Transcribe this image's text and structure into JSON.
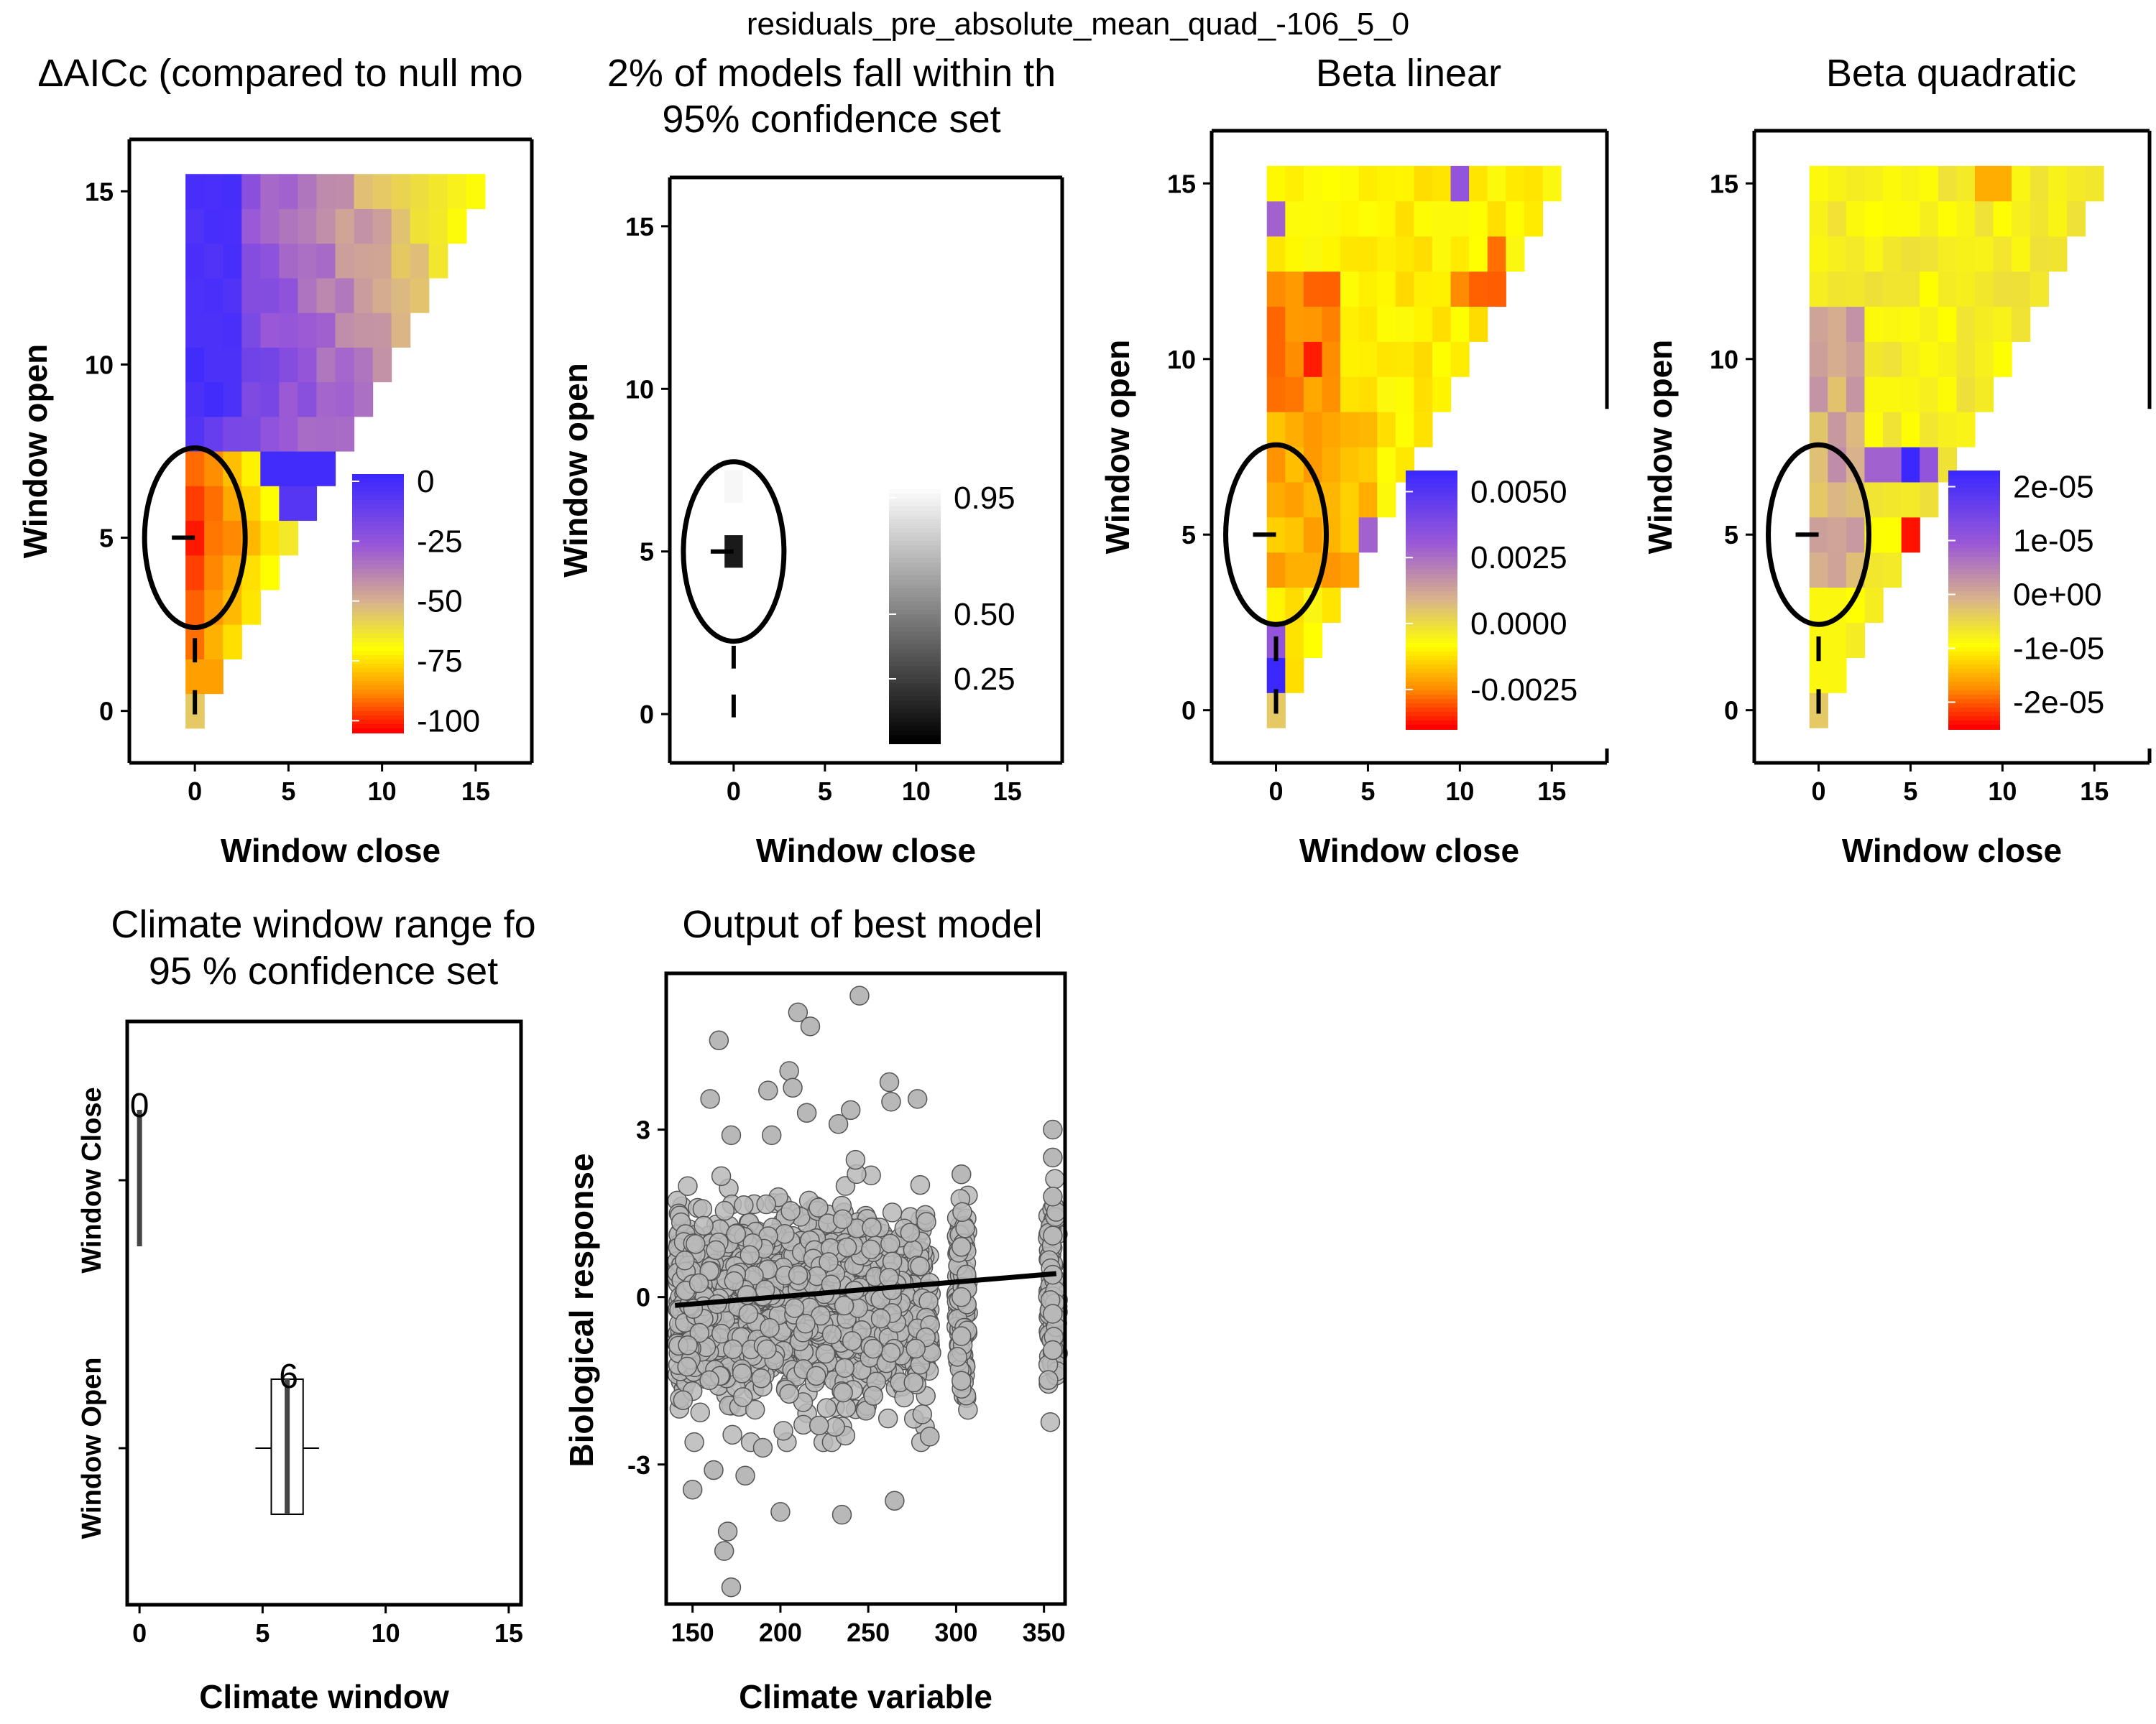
{
  "page_title": "residuals_pre_absolute_mean_quad_-106_5_0",
  "colors": {
    "blue": "#3b28ff",
    "purple": "#9b59d6",
    "tan": "#d9b48a",
    "yellow": "#ffff00",
    "orange": "#ff8c00",
    "red": "#ff0000",
    "point_fill": "#b8b8b8",
    "point_edge": "#555555",
    "ellipse": "#000000"
  },
  "chart_data": [
    {
      "type": "heatmap",
      "title": "ΔAICc (compared to null mo",
      "xlabel": "Window close",
      "ylabel": "Window open",
      "xlim": [
        -3.5,
        18
      ],
      "ylim": [
        -1.5,
        16.5
      ],
      "xticks": [
        "0",
        "5",
        "10",
        "15"
      ],
      "yticks": [
        "0",
        "5",
        "10",
        "15"
      ],
      "legend": {
        "position": "right",
        "labels": [
          "0",
          "-25",
          "-50",
          "-75",
          "-100"
        ],
        "range": [
          -105,
          3
        ],
        "scale": "blue-purple-tan-yellow-orange-red"
      },
      "best_window": {
        "open": 5,
        "close": 0
      },
      "ellipse_center": [
        0,
        5
      ],
      "value_range": [
        -105,
        3
      ]
    },
    {
      "type": "heatmap",
      "title": "2% of models fall within th",
      "subtitle": "95% confidence set",
      "xlabel": "Window close",
      "ylabel": "Window open",
      "xlim": [
        -3.5,
        18
      ],
      "ylim": [
        -1.5,
        16.5
      ],
      "xticks": [
        "0",
        "5",
        "10",
        "15"
      ],
      "yticks": [
        "0",
        "5",
        "10",
        "15"
      ],
      "legend": {
        "position": "right",
        "labels": [
          "0.95",
          "0.50",
          "0.25"
        ],
        "range": [
          0,
          1
        ],
        "scale": "black-white"
      },
      "cells": [
        {
          "open": 5,
          "close": 0,
          "value": 0.1
        },
        {
          "open": 7,
          "close": 0,
          "value": 0.97
        }
      ],
      "best_window": {
        "open": 5,
        "close": 0
      },
      "ellipse_center": [
        0,
        5
      ]
    },
    {
      "type": "heatmap",
      "title": "Beta linear",
      "xlabel": "Window close",
      "ylabel": "Window open",
      "xlim": [
        -3.5,
        18
      ],
      "ylim": [
        -1.5,
        16.5
      ],
      "xticks": [
        "0",
        "5",
        "10",
        "15"
      ],
      "yticks": [
        "0",
        "5",
        "10",
        "15"
      ],
      "legend": {
        "position": "right",
        "labels": [
          "0.0050",
          "0.0025",
          "0.0000",
          "-0.0025"
        ],
        "range": [
          -0.004,
          0.0058
        ],
        "scale": "blue-purple-tan-yellow-orange-red"
      },
      "best_window": {
        "open": 5,
        "close": 0
      },
      "ellipse_center": [
        0,
        5
      ]
    },
    {
      "type": "heatmap",
      "title": "Beta quadratic",
      "xlabel": "Window close",
      "ylabel": "Window open",
      "xlim": [
        -3.5,
        18
      ],
      "ylim": [
        -1.5,
        16.5
      ],
      "xticks": [
        "0",
        "5",
        "10",
        "15"
      ],
      "yticks": [
        "0",
        "5",
        "10",
        "15"
      ],
      "legend": {
        "position": "right",
        "labels": [
          "2e-05",
          "1e-05",
          "0e+00",
          "-1e-05",
          "-2e-05"
        ],
        "range": [
          -2.5e-05,
          2.3e-05
        ],
        "scale": "blue-purple-tan-yellow-orange-red"
      },
      "best_window": {
        "open": 5,
        "close": 0
      },
      "ellipse_center": [
        0,
        5
      ]
    },
    {
      "type": "box",
      "title": "Climate window range fo",
      "subtitle": "95 % confidence set",
      "xlabel": "Climate window",
      "ylabel_top": "Window Close",
      "ylabel_bottom": "Window Open",
      "xlim": [
        -0.5,
        15.5
      ],
      "xticks": [
        "0",
        "5",
        "10",
        "15"
      ],
      "boxes": [
        {
          "group": "Window Close",
          "min": 0,
          "q1": 0,
          "median": 0,
          "q3": 0,
          "max": 0,
          "label": "0"
        },
        {
          "group": "Window Open",
          "min": 5,
          "q1": 5.5,
          "median": 6,
          "q3": 6.5,
          "max": 7,
          "label": "6"
        }
      ]
    },
    {
      "type": "scatter",
      "title": "Output of best model",
      "xlabel": "Climate variable",
      "ylabel": "Biological response",
      "xlim": [
        135,
        362
      ],
      "ylim": [
        -5.5,
        5.8
      ],
      "xticks": [
        "150",
        "200",
        "250",
        "300",
        "350"
      ],
      "yticks": [
        "-3",
        "0",
        "3"
      ],
      "trend_line": {
        "x": [
          140,
          357
        ],
        "y": [
          -0.15,
          0.42
        ]
      },
      "distribution": "dense cloud of ~2000 points; x mostly 140–285 with columns near 303 and 355; y mostly within -2 to 2",
      "points": [
        {
          "x": 245,
          "y": 5.4
        },
        {
          "x": 210,
          "y": 5.1
        },
        {
          "x": 217,
          "y": 4.85
        },
        {
          "x": 165,
          "y": 4.6
        },
        {
          "x": 205,
          "y": 4.05
        },
        {
          "x": 262,
          "y": 3.85
        },
        {
          "x": 207,
          "y": 3.75
        },
        {
          "x": 193,
          "y": 3.7
        },
        {
          "x": 160,
          "y": 3.55
        },
        {
          "x": 278,
          "y": 3.55
        },
        {
          "x": 263,
          "y": 3.5
        },
        {
          "x": 240,
          "y": 3.35
        },
        {
          "x": 215,
          "y": 3.3
        },
        {
          "x": 172,
          "y": 2.9
        },
        {
          "x": 195,
          "y": 2.9
        },
        {
          "x": 233,
          "y": 3.1
        },
        {
          "x": 150,
          "y": -3.45
        },
        {
          "x": 162,
          "y": -3.1
        },
        {
          "x": 170,
          "y": -4.2
        },
        {
          "x": 168,
          "y": -4.55
        },
        {
          "x": 172,
          "y": -5.2
        },
        {
          "x": 200,
          "y": -3.85
        },
        {
          "x": 235,
          "y": -3.9
        },
        {
          "x": 265,
          "y": -3.65
        },
        {
          "x": 180,
          "y": -3.2
        },
        {
          "x": 190,
          "y": -2.7
        },
        {
          "x": 222,
          "y": -2.3
        },
        {
          "x": 285,
          "y": -2.5
        },
        {
          "x": 303,
          "y": 2.2
        },
        {
          "x": 303,
          "y": -1.5
        },
        {
          "x": 355,
          "y": 3.0
        },
        {
          "x": 355,
          "y": -0.95
        },
        {
          "x": 355,
          "y": 2.5
        },
        {
          "x": 355,
          "y": 1.8
        },
        {
          "x": 355,
          "y": 1.1
        },
        {
          "x": 355,
          "y": 0.4
        },
        {
          "x": 355,
          "y": -0.3
        },
        {
          "x": 303,
          "y": 0.9
        },
        {
          "x": 303,
          "y": 0.0
        },
        {
          "x": 303,
          "y": -0.7
        }
      ]
    }
  ]
}
